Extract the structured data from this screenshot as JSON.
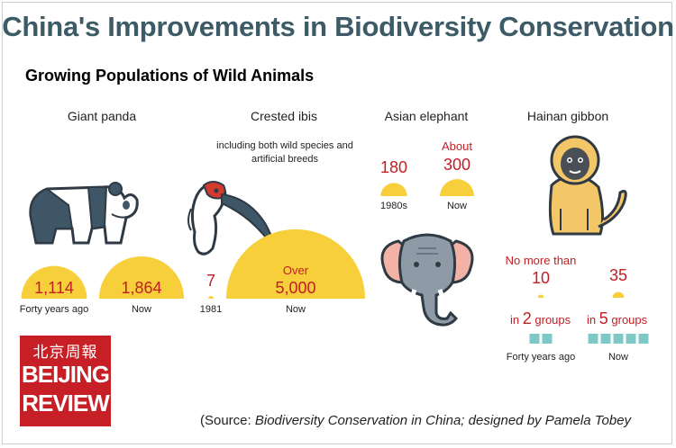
{
  "title": "China's Improvements in Biodiversity Conservation",
  "subtitle": "Growing Populations of Wild Animals",
  "colors": {
    "title": "#3d5b66",
    "value_red": "#c21e25",
    "semicircle_yellow": "#f7cf3b",
    "group_square": "#7ec8c8",
    "logo_red": "#c61f26"
  },
  "chart_data": {
    "type": "proportional-semicircle",
    "title": "Growing Populations of Wild Animals",
    "animals": [
      {
        "name": "Giant panda",
        "icon": "panda-icon",
        "points": [
          {
            "period": "Forty years ago",
            "value_label": "1,114",
            "value": 1114
          },
          {
            "period": "Now",
            "value_label": "1,864",
            "value": 1864
          }
        ]
      },
      {
        "name": "Crested ibis",
        "icon": "ibis-icon",
        "note": "including both wild species and artificial breeds",
        "points": [
          {
            "period": "1981",
            "value_label": "7",
            "value": 7
          },
          {
            "period": "Now",
            "prefix": "Over",
            "value_label": "5,000",
            "value": 5000
          }
        ]
      },
      {
        "name": "Asian elephant",
        "icon": "elephant-icon",
        "points": [
          {
            "period": "1980s",
            "value_label": "180",
            "value": 180
          },
          {
            "period": "Now",
            "prefix": "About",
            "value_label": "300",
            "value": 300
          }
        ]
      },
      {
        "name": "Hainan gibbon",
        "icon": "gibbon-icon",
        "points": [
          {
            "period": "Forty years ago",
            "prefix": "No more than",
            "value_label": "10",
            "value": 10,
            "groups": 2,
            "groups_before": "in",
            "groups_after": "groups"
          },
          {
            "period": "Now",
            "value_label": "35",
            "value": 35,
            "groups": 5,
            "groups_before": "in",
            "groups_after": "groups"
          }
        ]
      }
    ]
  },
  "logo": {
    "chinese": "北京周報",
    "line1": "BEIJING",
    "line2": "REVIEW"
  },
  "source": {
    "prefix": "(Source: ",
    "italic": "Biodiversity Conservation in China; designed by Pamela Tobey"
  }
}
